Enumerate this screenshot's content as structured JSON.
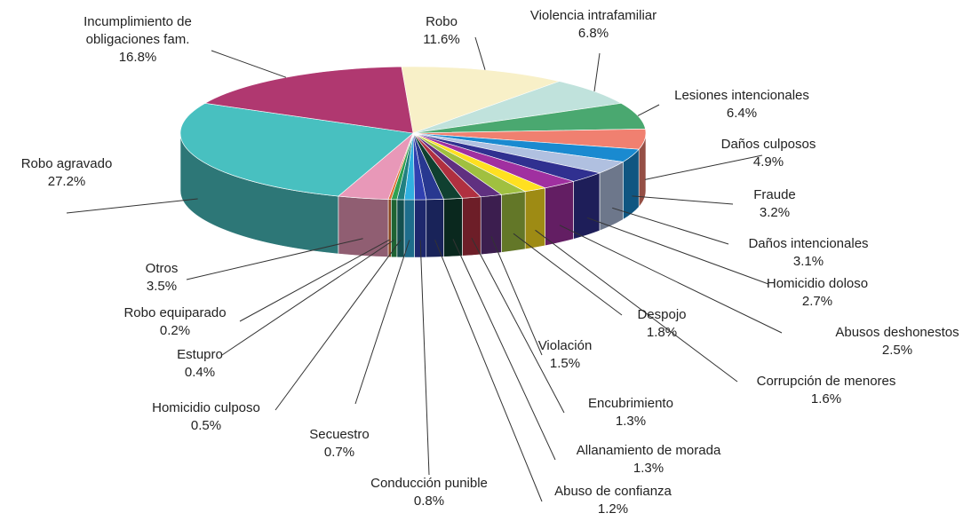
{
  "chart_data": {
    "type": "pie3d",
    "categories": [
      "Robo",
      "Violencia intrafamiliar",
      "Lesiones intencionales",
      "Daños culposos",
      "Fraude",
      "Daños intencionales",
      "Homicidio doloso",
      "Abusos deshonestos",
      "Corrupción de menores",
      "Despojo",
      "Violación",
      "Encubrimiento",
      "Allanamiento de morada",
      "Abuso de confianza",
      "Conducción punible",
      "Secuestro",
      "Homicidio culposo",
      "Estupro",
      "Robo equiparado",
      "Otros",
      "Robo agravado",
      "Incumplimiento de obligaciones fam."
    ],
    "values": [
      11.6,
      6.8,
      6.4,
      4.9,
      3.2,
      3.1,
      2.7,
      2.5,
      1.6,
      1.8,
      1.5,
      1.3,
      1.3,
      1.2,
      0.8,
      0.7,
      0.5,
      0.4,
      0.2,
      3.5,
      27.2,
      16.8
    ],
    "value_labels": [
      "11.6%",
      "6.8%",
      "6.4%",
      "4.9%",
      "3.2%",
      "3.1%",
      "2.7%",
      "2.5%",
      "1.6%",
      "1.8%",
      "1.5%",
      "1.3%",
      "1.3%",
      "1.2%",
      "0.8%",
      "0.7%",
      "0.5%",
      "0.4%",
      "0.2%",
      "3.5%",
      "27.2%",
      "16.8%"
    ],
    "colors": [
      "#f8f0c8",
      "#c0e2dc",
      "#4aa870",
      "#f08070",
      "#1a8ad0",
      "#b0c0e0",
      "#303090",
      "#a030a0",
      "#ffe020",
      "#a0c040",
      "#603080",
      "#b03040",
      "#104030",
      "#283890",
      "#3040b0",
      "#30b0e0",
      "#208080",
      "#30a050",
      "#e07030",
      "#e898b8",
      "#48c0c0",
      "#b03870"
    ]
  }
}
